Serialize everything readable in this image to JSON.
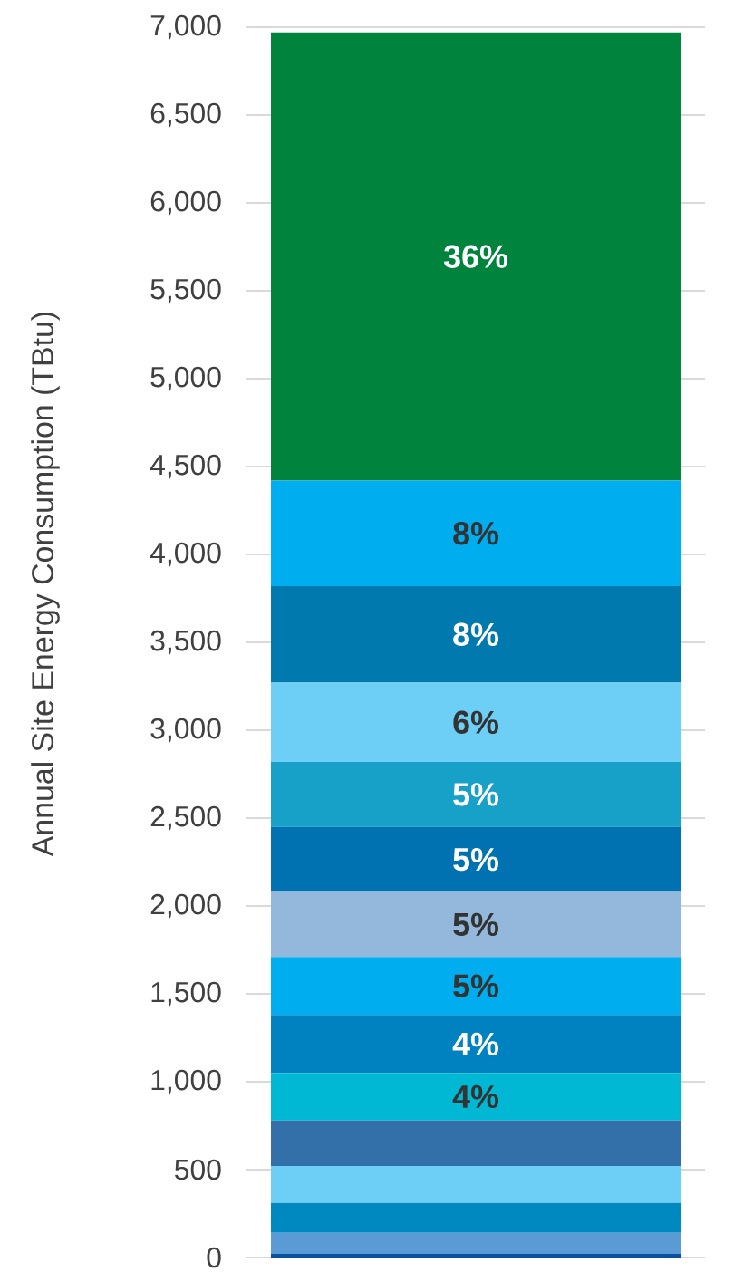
{
  "chart_data": {
    "type": "bar",
    "stacked": true,
    "ylabel": "Annual Site Energy Consumption (TBtu)",
    "categories": [
      null
    ],
    "series": [
      {
        "color": "#0a4fa0",
        "values": [
          20
        ]
      },
      {
        "color": "#5b9bd5",
        "values": [
          120
        ]
      },
      {
        "color": "#0088c0",
        "values": [
          170
        ]
      },
      {
        "color": "#6dcff6",
        "values": [
          210
        ]
      },
      {
        "color": "#336fa8",
        "values": [
          260
        ]
      },
      {
        "color": "#00b8d4",
        "values": [
          270
        ]
      },
      {
        "color": "#0082c0",
        "values": [
          330
        ]
      },
      {
        "color": "#00aeef",
        "values": [
          330
        ]
      },
      {
        "color": "#93b8dc",
        "values": [
          370
        ]
      },
      {
        "color": "#0072b2",
        "values": [
          370
        ]
      },
      {
        "color": "#17a0c8",
        "values": [
          370
        ]
      },
      {
        "color": "#6dcff6",
        "values": [
          450
        ]
      },
      {
        "color": "#0079ae",
        "values": [
          550
        ]
      },
      {
        "color": "#00aeef",
        "values": [
          600
        ]
      },
      {
        "color": "#00843d",
        "values": [
          2550
        ]
      }
    ],
    "annotations": [
      "4%",
      "4%",
      "5%",
      "5%",
      "5%",
      "5%",
      "6%",
      "8%",
      "8%",
      "36%"
    ],
    "ylim": [
      0,
      7000
    ],
    "yticks": [
      0,
      500,
      {
        "value": 1000,
        "label": "1,000"
      },
      {
        "value": 1500,
        "label": "1,500"
      },
      {
        "value": 2000,
        "label": "2,000"
      },
      {
        "value": 2500,
        "label": "2,500"
      },
      {
        "value": 3000,
        "label": "3,000"
      },
      {
        "value": 3500,
        "label": "3,500"
      },
      {
        "value": 4000,
        "label": "4,000"
      },
      {
        "value": 4500,
        "label": "4,500"
      },
      {
        "value": 5000,
        "label": "5,000"
      },
      {
        "value": 5500,
        "label": "5,500"
      },
      {
        "value": 6000,
        "label": "6,000"
      },
      {
        "value": 6500,
        "label": "6,500"
      },
      {
        "value": 7000,
        "label": "7,000"
      }
    ],
    "grid": "y"
  }
}
